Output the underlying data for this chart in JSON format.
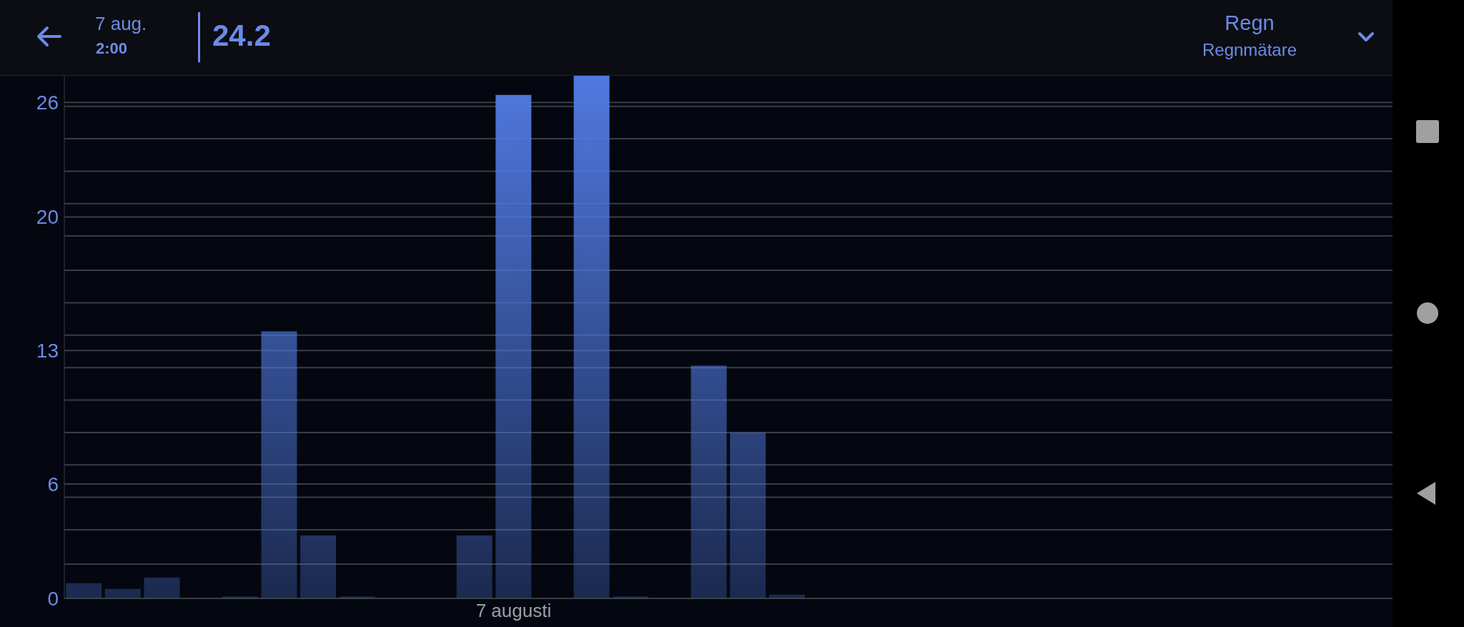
{
  "chart_data": {
    "type": "bar",
    "title": "Regn",
    "subtitle": "Regnmätare",
    "annotations": [
      "7 aug.",
      "2:00",
      "24.2"
    ],
    "categories": [
      null,
      null,
      null,
      null,
      null,
      null,
      null,
      null,
      null,
      null,
      null,
      "7 augusti",
      null,
      null,
      null,
      null,
      null,
      null,
      null,
      null,
      null,
      null,
      null,
      null,
      null,
      null,
      null,
      null,
      null,
      null,
      null,
      null,
      null,
      null
    ],
    "values": [
      0.8,
      0.5,
      1.1,
      0,
      0.1,
      14.0,
      3.3,
      0.1,
      0,
      0,
      3.3,
      26.4,
      0,
      27.4,
      0.1,
      0,
      12.2,
      8.7,
      0.2,
      null,
      null,
      null,
      null,
      null,
      null,
      null,
      null,
      null,
      null,
      null,
      null,
      null,
      null,
      null
    ],
    "color": "#5079e0",
    "ylim": [
      0,
      27.4
    ],
    "yticks": [
      0,
      {
        "value": 1.8,
        "label": null
      },
      {
        "value": 3.6,
        "label": null
      },
      {
        "value": 5.3,
        "label": null
      },
      6,
      {
        "value": 7.0,
        "label": null
      },
      {
        "value": 8.7,
        "label": null
      },
      {
        "value": 10.4,
        "label": null
      },
      {
        "value": 12.1,
        "label": null
      },
      13,
      {
        "value": 13.8,
        "label": null
      },
      {
        "value": 15.5,
        "label": null
      },
      {
        "value": 17.2,
        "label": null
      },
      {
        "value": 19.0,
        "label": null
      },
      20,
      {
        "value": 20.7,
        "label": null
      },
      {
        "value": 22.4,
        "label": null
      },
      {
        "value": 24.1,
        "label": null
      },
      {
        "value": 25.8,
        "label": null
      },
      26
    ],
    "grid": "y",
    "legend": false
  }
}
